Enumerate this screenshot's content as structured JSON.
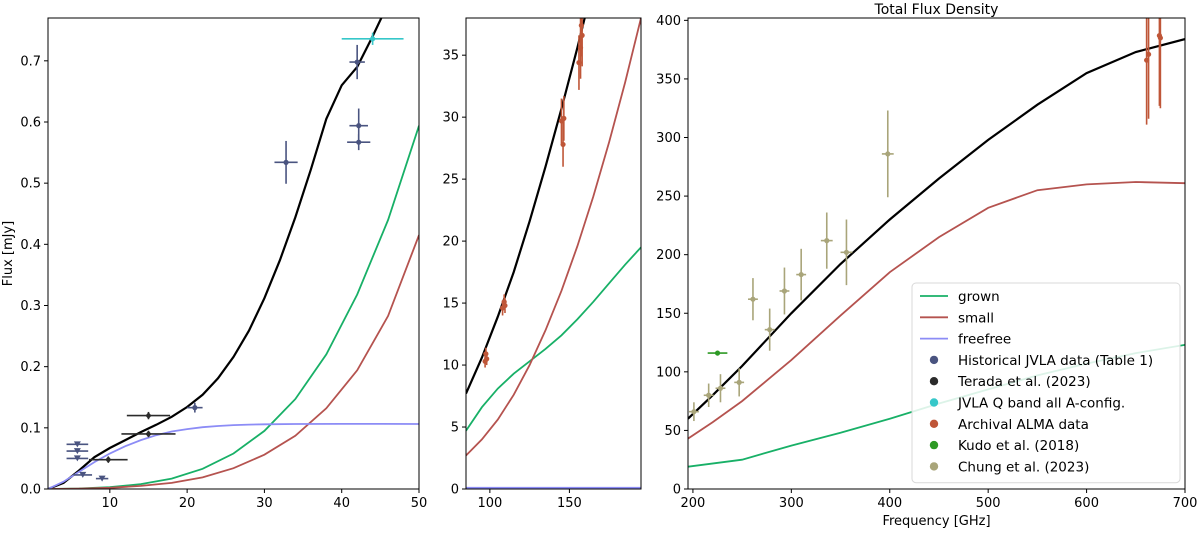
{
  "colors": {
    "grown": "#18b067",
    "small": "#b5534f",
    "freefree": "#8c8cf6",
    "model": "#000000",
    "historical": "#4a5480",
    "terada": "#2b2b2b",
    "qband": "#36c7c9",
    "alma": "#bf5638",
    "kudo": "#2e9a25",
    "chung": "#a9a57a"
  },
  "chart_data": [
    {
      "type": "scatter",
      "panel": "left",
      "title": "",
      "xlabel": "",
      "ylabel": "Flux [mJy]",
      "xlim": [
        2,
        50
      ],
      "ylim": [
        0,
        0.77
      ],
      "xticks": [
        "10",
        "20",
        "30",
        "40",
        "50"
      ],
      "xtick_values": [
        10,
        20,
        30,
        40,
        50
      ],
      "yticks": [
        "0.0",
        "0.1",
        "0.2",
        "0.3",
        "0.4",
        "0.5",
        "0.6",
        "0.7"
      ],
      "ytick_values": [
        0,
        0.1,
        0.2,
        0.3,
        0.4,
        0.5,
        0.6,
        0.7
      ],
      "series": [
        {
          "key": "model",
          "kind": "line",
          "colorKey": "model",
          "x": [
            2,
            4,
            6,
            8,
            10,
            12,
            14,
            16,
            18,
            20,
            22,
            24,
            26,
            28,
            30,
            32,
            34,
            36,
            38,
            40,
            42,
            44,
            45.5
          ],
          "y": [
            0.0,
            0.01,
            0.03,
            0.052,
            0.067,
            0.08,
            0.093,
            0.105,
            0.118,
            0.134,
            0.154,
            0.181,
            0.216,
            0.259,
            0.312,
            0.374,
            0.444,
            0.522,
            0.605,
            0.66,
            0.69,
            0.74,
            0.78
          ]
        },
        {
          "key": "grown",
          "kind": "line",
          "colorKey": "grown",
          "x": [
            2,
            6,
            10,
            14,
            18,
            22,
            26,
            30,
            34,
            38,
            42,
            46,
            50
          ],
          "y": [
            0,
            0.0008,
            0.003,
            0.008,
            0.017,
            0.033,
            0.058,
            0.095,
            0.147,
            0.22,
            0.318,
            0.44,
            0.594
          ]
        },
        {
          "key": "small",
          "kind": "line",
          "colorKey": "small",
          "x": [
            2,
            6,
            10,
            14,
            18,
            22,
            26,
            30,
            34,
            38,
            42,
            46,
            50
          ],
          "y": [
            0,
            0.0005,
            0.002,
            0.005,
            0.01,
            0.019,
            0.034,
            0.056,
            0.087,
            0.132,
            0.194,
            0.283,
            0.415
          ]
        },
        {
          "key": "freefree",
          "kind": "line",
          "colorKey": "freefree",
          "x": [
            2,
            4,
            6,
            8,
            10,
            12,
            14,
            16,
            18,
            20,
            22,
            24,
            26,
            28,
            30,
            34,
            40,
            45,
            50
          ],
          "y": [
            0,
            0.012,
            0.028,
            0.044,
            0.058,
            0.07,
            0.08,
            0.088,
            0.094,
            0.098,
            0.101,
            0.103,
            0.1045,
            0.1053,
            0.1058,
            0.1062,
            0.1064,
            0.1064,
            0.1063
          ]
        },
        {
          "key": "historical",
          "kind": "points",
          "colorKey": "historical",
          "points": [
            {
              "x": 5.8,
              "y": 0.073,
              "xerr": 1.4,
              "yerr": 0,
              "marker": "tri"
            },
            {
              "x": 5.8,
              "y": 0.062,
              "xerr": 1.4,
              "yerr": 0,
              "marker": "tri"
            },
            {
              "x": 5.8,
              "y": 0.05,
              "xerr": 1.4,
              "yerr": 0,
              "marker": "tri"
            },
            {
              "x": 6.5,
              "y": 0.023,
              "xerr": 1.2,
              "yerr": 0,
              "marker": "tri"
            },
            {
              "x": 9.0,
              "y": 0.017,
              "xerr": 0.8,
              "yerr": 0,
              "marker": "tri"
            },
            {
              "x": 21.0,
              "y": 0.133,
              "xerr": 1.0,
              "yerr": 0.008,
              "marker": "dot"
            },
            {
              "x": 32.8,
              "y": 0.534,
              "xerr": 1.5,
              "yerr": 0.035,
              "marker": "dot"
            },
            {
              "x": 42.0,
              "y": 0.698,
              "xerr": 1.0,
              "yerr": 0.028,
              "marker": "dot"
            },
            {
              "x": 42.2,
              "y": 0.594,
              "xerr": 1.2,
              "yerr": 0.028,
              "marker": "dot"
            },
            {
              "x": 42.2,
              "y": 0.567,
              "xerr": 1.5,
              "yerr": 0.013,
              "marker": "dot"
            }
          ]
        },
        {
          "key": "terada",
          "kind": "points",
          "colorKey": "terada",
          "points": [
            {
              "x": 9.8,
              "y": 0.048,
              "xerr": 2.5,
              "yerr": 0.005,
              "marker": "dia"
            },
            {
              "x": 15.0,
              "y": 0.12,
              "xerr": 2.8,
              "yerr": 0.006,
              "marker": "dia"
            },
            {
              "x": 15.0,
              "y": 0.09,
              "xerr": 3.5,
              "yerr": 0.005,
              "marker": "dia"
            }
          ]
        },
        {
          "key": "qband",
          "kind": "points",
          "colorKey": "qband",
          "points": [
            {
              "x": 44.0,
              "y": 0.736,
              "xerr": 4.0,
              "yerr": 0.01,
              "marker": "dot"
            }
          ]
        }
      ]
    },
    {
      "type": "scatter",
      "panel": "middle",
      "title": "",
      "xlabel": "",
      "ylabel": "",
      "xlim": [
        85,
        195
      ],
      "ylim": [
        0,
        38
      ],
      "xticks": [
        "100",
        "150"
      ],
      "xtick_values": [
        100,
        150
      ],
      "yticks": [
        "0",
        "5",
        "10",
        "15",
        "20",
        "25",
        "30",
        "35"
      ],
      "ytick_values": [
        0,
        5,
        10,
        15,
        20,
        25,
        30,
        35
      ],
      "series": [
        {
          "key": "model",
          "kind": "line",
          "colorKey": "model",
          "x": [
            85,
            95,
            105,
            115,
            125,
            135,
            145,
            155,
            160
          ],
          "y": [
            7.7,
            10.6,
            13.9,
            17.5,
            21.6,
            26,
            30.7,
            35.6,
            38.2
          ]
        },
        {
          "key": "grown",
          "kind": "line",
          "colorKey": "grown",
          "x": [
            85,
            95,
            105,
            115,
            125,
            135,
            145,
            155,
            165,
            175,
            185,
            195
          ],
          "y": [
            4.7,
            6.6,
            8.1,
            9.3,
            10.3,
            11.3,
            12.4,
            13.7,
            15.1,
            16.6,
            18.1,
            19.5
          ]
        },
        {
          "key": "small",
          "kind": "line",
          "colorKey": "small",
          "x": [
            85,
            95,
            105,
            115,
            125,
            135,
            145,
            155,
            165,
            175,
            185,
            195
          ],
          "y": [
            2.7,
            4.0,
            5.6,
            7.6,
            10.0,
            12.8,
            16.0,
            19.6,
            23.6,
            28.0,
            32.8,
            38.0
          ]
        },
        {
          "key": "freefree",
          "kind": "line",
          "colorKey": "freefree",
          "x": [
            85,
            195
          ],
          "y": [
            0.1,
            0.1
          ]
        },
        {
          "key": "alma",
          "kind": "points",
          "colorKey": "alma",
          "points": [
            {
              "x": 97,
              "y": 10.3,
              "xerr": 0,
              "yerr": 0.5,
              "marker": "dot"
            },
            {
              "x": 97.5,
              "y": 10.9,
              "xerr": 0,
              "yerr": 0.5,
              "marker": "dot"
            },
            {
              "x": 98,
              "y": 10.5,
              "xerr": 0,
              "yerr": 0.5,
              "marker": "dot"
            },
            {
              "x": 108,
              "y": 14.6,
              "xerr": 0,
              "yerr": 0.6,
              "marker": "dot"
            },
            {
              "x": 109,
              "y": 15.1,
              "xerr": 0,
              "yerr": 0.6,
              "marker": "dot"
            },
            {
              "x": 109.5,
              "y": 14.8,
              "xerr": 0,
              "yerr": 0.6,
              "marker": "dot"
            },
            {
              "x": 145,
              "y": 29.7,
              "xerr": 0,
              "yerr": 1.8,
              "marker": "dot"
            },
            {
              "x": 146,
              "y": 27.8,
              "xerr": 0,
              "yerr": 1.8,
              "marker": "dot"
            },
            {
              "x": 146.5,
              "y": 29.9,
              "xerr": 0,
              "yerr": 1.8,
              "marker": "dot"
            },
            {
              "x": 156,
              "y": 34.4,
              "xerr": 0,
              "yerr": 2.2,
              "marker": "dot"
            },
            {
              "x": 157,
              "y": 35.6,
              "xerr": 0,
              "yerr": 2.5,
              "marker": "dot"
            },
            {
              "x": 157.5,
              "y": 37.4,
              "xerr": 0,
              "yerr": 2.5,
              "marker": "dot"
            },
            {
              "x": 158,
              "y": 36.6,
              "xerr": 0,
              "yerr": 2.5,
              "marker": "dot"
            }
          ]
        }
      ]
    },
    {
      "type": "scatter",
      "panel": "right",
      "title": "Total Flux Density",
      "xlabel": "Frequency [GHz]",
      "ylabel": "",
      "xlim": [
        195,
        700
      ],
      "ylim": [
        0,
        402
      ],
      "xticks": [
        "200",
        "300",
        "400",
        "500",
        "600",
        "700"
      ],
      "xtick_values": [
        200,
        300,
        400,
        500,
        600,
        700
      ],
      "yticks": [
        "0",
        "50",
        "100",
        "150",
        "200",
        "250",
        "300",
        "350",
        "400"
      ],
      "ytick_values": [
        0,
        50,
        100,
        150,
        200,
        250,
        300,
        350,
        400
      ],
      "legend": {
        "placement": "lower-right",
        "entries": [
          {
            "label": "grown",
            "kind": "line",
            "colorKey": "grown"
          },
          {
            "label": "small",
            "kind": "line",
            "colorKey": "small"
          },
          {
            "label": "freefree",
            "kind": "line",
            "colorKey": "freefree"
          },
          {
            "label": "Historical JVLA data (Table 1)",
            "kind": "dot",
            "colorKey": "historical"
          },
          {
            "label": "Terada et al. (2023)",
            "kind": "dot",
            "colorKey": "terada"
          },
          {
            "label": "JVLA Q band all A-config.",
            "kind": "dot",
            "colorKey": "qband"
          },
          {
            "label": "Archival ALMA data",
            "kind": "dot",
            "colorKey": "alma"
          },
          {
            "label": "Kudo et al. (2018)",
            "kind": "dot",
            "colorKey": "kudo"
          },
          {
            "label": "Chung et al. (2023)",
            "kind": "dot",
            "colorKey": "chung"
          }
        ]
      },
      "series": [
        {
          "key": "model",
          "kind": "line",
          "colorKey": "model",
          "x": [
            195,
            220,
            250,
            300,
            350,
            400,
            450,
            500,
            550,
            600,
            650,
            700
          ],
          "y": [
            60,
            80,
            105,
            150,
            192,
            230,
            265,
            298,
            328,
            355,
            373,
            384
          ]
        },
        {
          "key": "small",
          "kind": "line",
          "colorKey": "small",
          "x": [
            195,
            220,
            250,
            300,
            350,
            400,
            450,
            500,
            550,
            600,
            650,
            700
          ],
          "y": [
            43,
            57,
            75,
            110,
            148,
            185,
            215,
            240,
            255,
            260,
            262,
            261
          ]
        },
        {
          "key": "grown",
          "kind": "line",
          "colorKey": "grown",
          "x": [
            195,
            250,
            300,
            350,
            400,
            450,
            500,
            550,
            600,
            650,
            700
          ],
          "y": [
            19,
            25,
            37,
            48,
            60,
            73,
            85,
            97,
            107,
            116,
            123
          ]
        },
        {
          "key": "chung",
          "kind": "points",
          "colorKey": "chung",
          "points": [
            {
              "x": 201,
              "y": 66,
              "xerr": 5,
              "yerr": 8,
              "marker": "dot"
            },
            {
              "x": 216,
              "y": 80,
              "xerr": 5,
              "yerr": 10,
              "marker": "dot"
            },
            {
              "x": 228,
              "y": 86,
              "xerr": 5,
              "yerr": 12,
              "marker": "dot"
            },
            {
              "x": 247,
              "y": 91,
              "xerr": 5,
              "yerr": 12,
              "marker": "dot"
            },
            {
              "x": 261,
              "y": 162,
              "xerr": 5,
              "yerr": 18,
              "marker": "dot"
            },
            {
              "x": 278,
              "y": 136,
              "xerr": 5,
              "yerr": 18,
              "marker": "dot"
            },
            {
              "x": 293,
              "y": 169,
              "xerr": 5,
              "yerr": 20,
              "marker": "dot"
            },
            {
              "x": 310,
              "y": 183,
              "xerr": 5,
              "yerr": 22,
              "marker": "dot"
            },
            {
              "x": 336,
              "y": 212,
              "xerr": 6,
              "yerr": 24,
              "marker": "dot"
            },
            {
              "x": 356,
              "y": 202,
              "xerr": 6,
              "yerr": 28,
              "marker": "dot"
            },
            {
              "x": 398,
              "y": 286,
              "xerr": 6,
              "yerr": 37,
              "marker": "dot"
            }
          ]
        },
        {
          "key": "kudo",
          "kind": "points",
          "colorKey": "kudo",
          "points": [
            {
              "x": 225,
              "y": 116,
              "xerr": 10,
              "yerr": 2,
              "marker": "dot"
            }
          ]
        },
        {
          "key": "alma",
          "kind": "points",
          "colorKey": "alma",
          "points": [
            {
              "x": 661,
              "y": 366,
              "xerr": 0,
              "yerr": 55,
              "marker": "dot"
            },
            {
              "x": 663,
              "y": 371,
              "xerr": 0,
              "yerr": 55,
              "marker": "dot"
            },
            {
              "x": 674,
              "y": 387,
              "xerr": 0,
              "yerr": 60,
              "marker": "dot"
            },
            {
              "x": 675,
              "y": 385,
              "xerr": 0,
              "yerr": 60,
              "marker": "dot"
            }
          ]
        }
      ]
    }
  ]
}
